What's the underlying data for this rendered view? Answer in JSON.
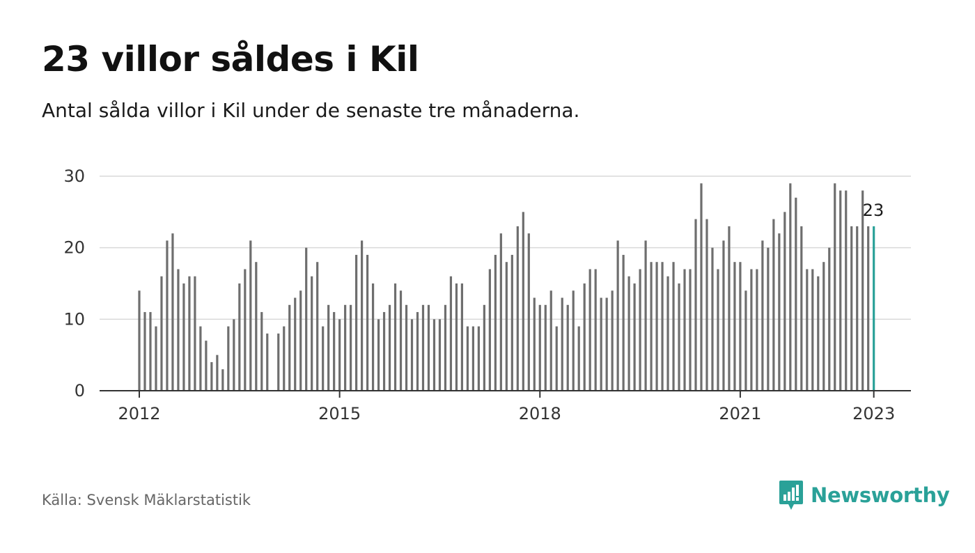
{
  "header": {
    "title": "23 villor såldes i Kil",
    "subtitle": "Antal sålda villor i Kil under de senaste tre månaderna."
  },
  "footer": {
    "source": "Källa: Svensk Mäklarstatistik",
    "brand": "Newsworthy",
    "brand_icon": "bar-chart-speech-bubble-icon"
  },
  "colors": {
    "bar": "#6e6e6e",
    "highlight": "#2aa198",
    "grid": "#d9d9d9",
    "axis": "#333333",
    "brand": "#2aa198"
  },
  "chart_data": {
    "type": "bar",
    "title": "23 villor såldes i Kil",
    "subtitle": "Antal sålda villor i Kil under de senaste tre månaderna.",
    "xlabel": "",
    "ylabel": "",
    "ylim": [
      0,
      30
    ],
    "y_ticks": [
      0,
      10,
      20,
      30
    ],
    "x_ticks": [
      "2012",
      "2015",
      "2018",
      "2021",
      "2023"
    ],
    "grid": true,
    "legend": "none",
    "highlight_label": "23",
    "series": [
      {
        "start": "2012-01",
        "frequency": "monthly",
        "values": [
          14,
          11,
          11,
          9,
          16,
          21,
          22,
          17,
          15,
          16,
          16,
          9,
          7,
          4,
          5,
          3,
          9,
          10,
          15,
          17,
          21,
          18,
          11,
          8,
          null,
          8,
          9,
          12,
          13,
          14,
          20,
          16,
          18,
          9,
          12,
          11,
          10,
          12,
          12,
          19,
          21,
          19,
          15,
          10,
          11,
          12,
          15,
          14,
          12,
          10,
          11,
          12,
          12,
          10,
          10,
          12,
          16,
          15,
          15,
          9,
          9,
          9,
          12,
          17,
          19,
          22,
          18,
          19,
          23,
          25,
          22,
          13,
          12,
          12,
          14,
          9,
          13,
          12,
          14,
          9,
          15,
          17,
          17,
          13,
          13,
          14,
          21,
          19,
          16,
          15,
          17,
          21,
          18,
          18,
          18,
          16,
          18,
          15,
          17,
          17,
          24,
          29,
          24,
          20,
          17,
          21,
          23,
          18,
          18,
          14,
          17,
          17,
          21,
          20,
          24,
          22,
          25,
          29,
          27,
          23,
          17,
          17,
          16,
          18,
          20,
          29,
          28,
          28,
          23,
          23,
          28,
          23,
          23
        ]
      }
    ]
  }
}
